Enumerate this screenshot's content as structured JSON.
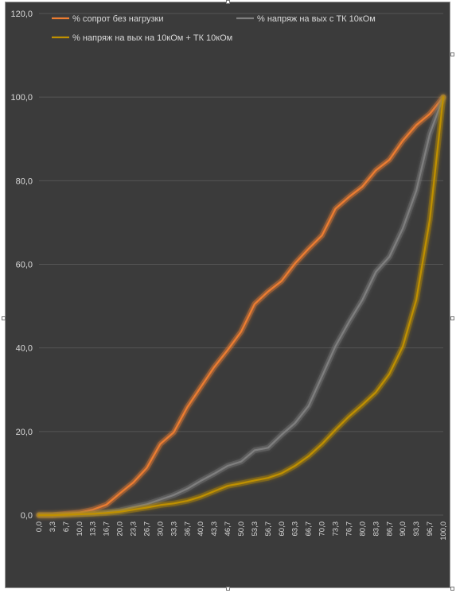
{
  "chart_data": {
    "type": "line",
    "title": "",
    "xlabel": "",
    "ylabel": "",
    "ylim": [
      0,
      120
    ],
    "yticks": [
      "0,0",
      "20,0",
      "40,0",
      "60,0",
      "80,0",
      "100,0",
      "120,0"
    ],
    "grid": true,
    "legend_position": "top",
    "background": "#3b3b3b",
    "categories": [
      "0,0",
      "3,3",
      "6,7",
      "10,0",
      "13,3",
      "16,7",
      "20,0",
      "23,3",
      "26,7",
      "30,0",
      "33,3",
      "36,7",
      "40,0",
      "43,3",
      "46,7",
      "50,0",
      "53,3",
      "56,7",
      "60,0",
      "63,3",
      "66,7",
      "70,0",
      "73,3",
      "76,7",
      "80,0",
      "83,3",
      "86,7",
      "90,0",
      "93,3",
      "96,7",
      "100,0"
    ],
    "series": [
      {
        "name": "% сопрот без нагрузки",
        "color": "#ed7d31",
        "values": [
          0.0,
          0.0,
          0.3,
          0.6,
          1.3,
          2.5,
          5.2,
          7.8,
          11.3,
          17.0,
          19.8,
          25.8,
          30.6,
          35.4,
          39.5,
          43.9,
          50.5,
          53.5,
          56.0,
          60.2,
          63.7,
          66.9,
          73.3,
          76.1,
          78.6,
          82.5,
          85.0,
          89.6,
          93.3,
          96.0,
          100.0
        ]
      },
      {
        "name": "% напряж на вых с ТК 10кОм",
        "color": "#7f7f7f",
        "values": [
          0.0,
          0.0,
          0.1,
          0.2,
          0.4,
          0.7,
          1.1,
          1.9,
          2.6,
          3.7,
          4.8,
          6.3,
          8.2,
          9.9,
          11.8,
          12.8,
          15.5,
          16.1,
          19.2,
          22.0,
          26.1,
          33.2,
          40.4,
          46.2,
          51.5,
          58.2,
          61.8,
          68.6,
          77.6,
          91.2,
          100.0
        ]
      },
      {
        "name": "% напряж на вых на 10кОм + ТК 10кОм",
        "color": "#bf9000",
        "values": [
          0.0,
          0.0,
          0.1,
          0.2,
          0.3,
          0.5,
          0.8,
          1.3,
          1.8,
          2.4,
          2.8,
          3.4,
          4.4,
          5.7,
          7.0,
          7.6,
          8.3,
          8.9,
          10.0,
          11.8,
          14.1,
          17.0,
          20.4,
          23.6,
          26.4,
          29.4,
          33.8,
          40.4,
          51.5,
          70.7,
          100.0
        ]
      }
    ]
  }
}
